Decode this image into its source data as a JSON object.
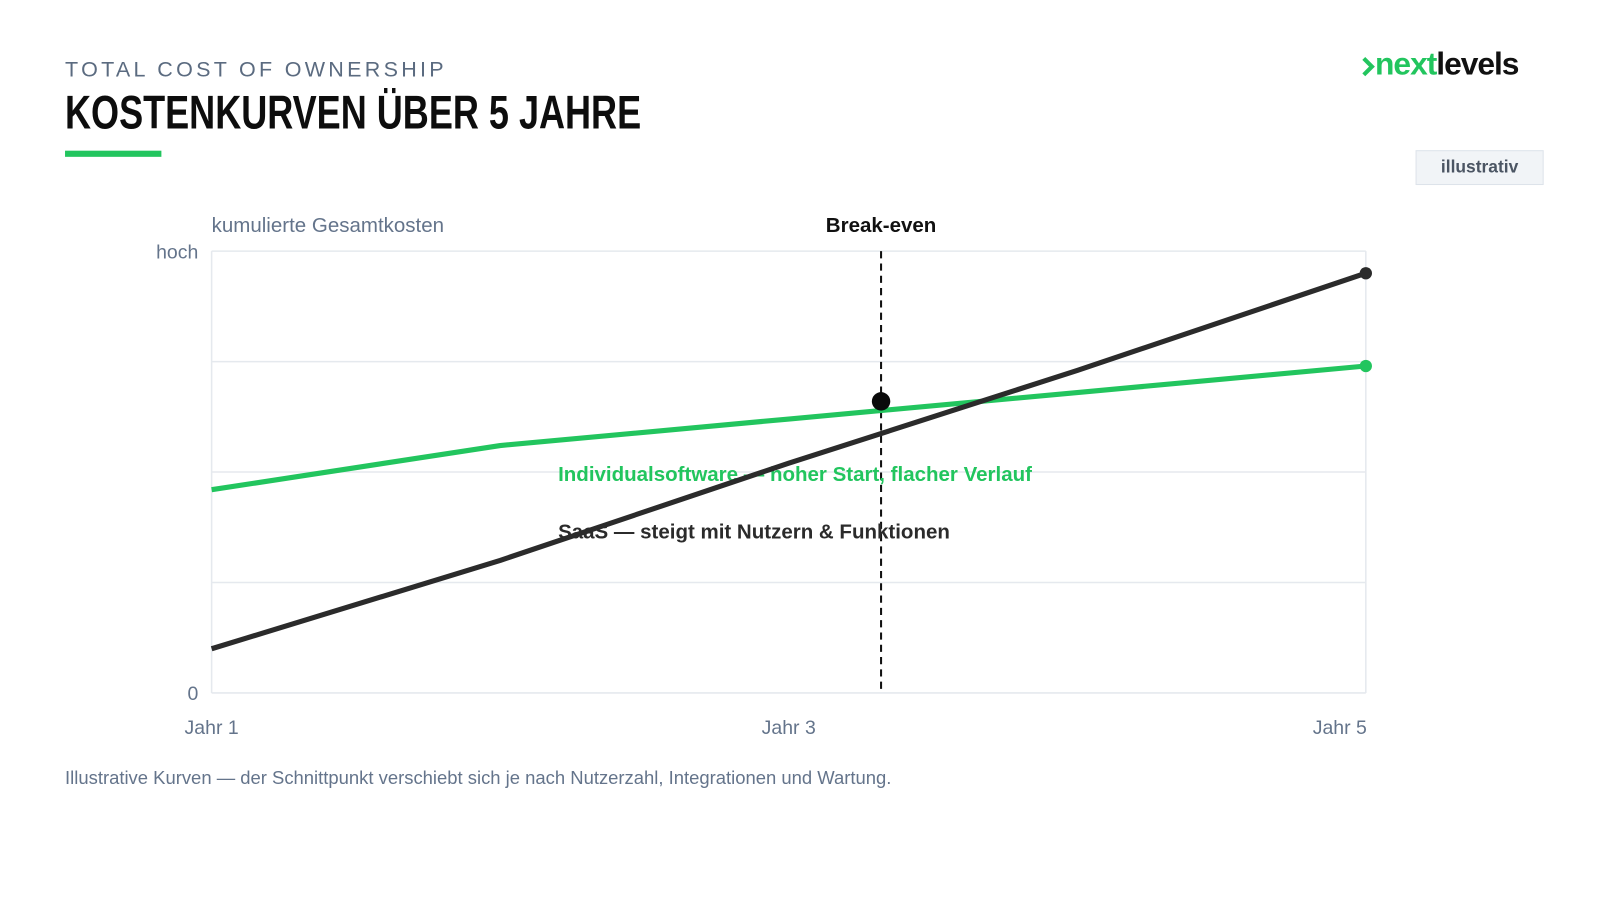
{
  "header": {
    "kicker": "TOTAL COST OF OWNERSHIP",
    "title": "KOSTENKURVEN ÜBER 5 JAHRE",
    "brand": [
      "next",
      "levels"
    ],
    "badge": "illustrativ"
  },
  "chart_data": {
    "type": "line",
    "y_label": "kumulierte Gesamtkosten",
    "x": [
      1,
      2,
      3,
      4,
      5
    ],
    "xlim": [
      1,
      5
    ],
    "xticks": [
      {
        "value": 1,
        "label": "Jahr 1"
      },
      {
        "value": 3,
        "label": "Jahr 3"
      },
      {
        "value": 5,
        "label": "Jahr 5"
      }
    ],
    "ylim": [
      0,
      100
    ],
    "yticks": [
      0,
      {
        "value": 100,
        "label": "hoch"
      }
    ],
    "ygrid": [
      0,
      25,
      50,
      75,
      100
    ],
    "series": [
      {
        "name": "Individualsoftware — hoher Start, flacher Verlauf",
        "color": "#22c55e",
        "values": [
          46,
          56,
          62,
          68,
          74
        ]
      },
      {
        "name": "SaaS — steigt mit Nutzern & Funktionen",
        "color": "#2b2b2b",
        "values": [
          10,
          30,
          52,
          73,
          95
        ]
      }
    ],
    "annotation": {
      "label": "Break-even",
      "x": 3.32,
      "y": 66
    }
  },
  "footnote": "Illustrative Kurven — der Schnittpunkt verschiebt sich je nach Nutzerzahl, Integrationen und Wartung."
}
